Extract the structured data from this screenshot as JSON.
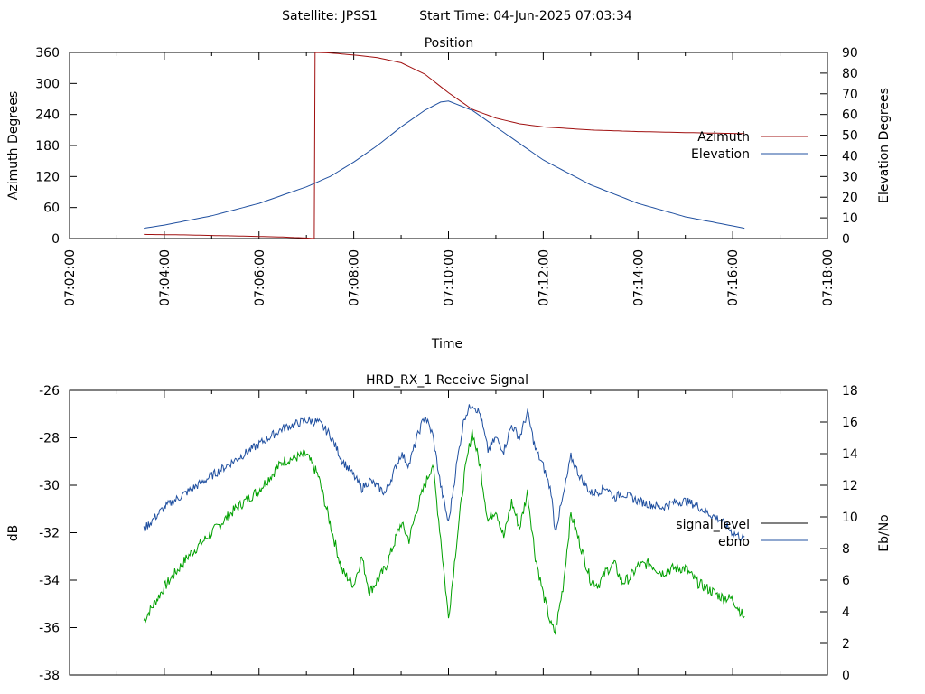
{
  "header": {
    "satellite_label": "Satellite: JPSS1",
    "start_label": "Start Time: 04-Jun-2025 07:03:34"
  },
  "colors": {
    "azimuth": "#a01010",
    "elevation": "#2050a0",
    "signal_level": "#00a000",
    "ebno": "#2050a0",
    "legend_signal_level": "#000000"
  },
  "chart_data": [
    {
      "type": "line",
      "title": "Position",
      "xlabel": "Time",
      "ylabel": "Azimuth Degrees",
      "y2label": "Elevation Degrees",
      "xlim": [
        "07:02:00",
        "07:18:00"
      ],
      "ylim": [
        0,
        360
      ],
      "y2lim": [
        0,
        90
      ],
      "x_ticks": [
        "07:02:00",
        "07:04:00",
        "07:06:00",
        "07:08:00",
        "07:10:00",
        "07:12:00",
        "07:14:00",
        "07:16:00",
        "07:18:00"
      ],
      "y_ticks": [
        "0",
        "60",
        "120",
        "180",
        "240",
        "300",
        "360"
      ],
      "y2_ticks": [
        "0",
        "10",
        "20",
        "30",
        "40",
        "50",
        "60",
        "70",
        "80",
        "90"
      ],
      "legend_position": "right",
      "grid": false,
      "series": [
        {
          "name": "Azimuth",
          "axis": "left",
          "points": [
            [
              "07:03:34",
              8
            ],
            [
              "07:04:30",
              7
            ],
            [
              "07:05:30",
              5
            ],
            [
              "07:06:30",
              3
            ],
            [
              "07:07:00",
              1
            ],
            [
              "07:07:10",
              0
            ],
            [
              "07:07:11",
              360
            ],
            [
              "07:07:30",
              359
            ],
            [
              "07:08:00",
              355
            ],
            [
              "07:08:30",
              350
            ],
            [
              "07:09:00",
              340
            ],
            [
              "07:09:30",
              318
            ],
            [
              "07:10:00",
              282
            ],
            [
              "07:10:30",
              250
            ],
            [
              "07:11:00",
              233
            ],
            [
              "07:11:30",
              222
            ],
            [
              "07:12:00",
              216
            ],
            [
              "07:13:00",
              210
            ],
            [
              "07:14:00",
              207
            ],
            [
              "07:15:00",
              205
            ],
            [
              "07:16:15",
              203
            ]
          ]
        },
        {
          "name": "Elevation",
          "axis": "right",
          "points": [
            [
              "07:03:34",
              5
            ],
            [
              "07:04:00",
              6.5
            ],
            [
              "07:05:00",
              11
            ],
            [
              "07:06:00",
              17
            ],
            [
              "07:07:00",
              25
            ],
            [
              "07:07:30",
              30
            ],
            [
              "07:08:00",
              37
            ],
            [
              "07:08:30",
              45
            ],
            [
              "07:09:00",
              54
            ],
            [
              "07:09:30",
              62
            ],
            [
              "07:09:50",
              66
            ],
            [
              "07:10:00",
              66.5
            ],
            [
              "07:10:30",
              62
            ],
            [
              "07:11:00",
              54
            ],
            [
              "07:11:30",
              46
            ],
            [
              "07:12:00",
              38
            ],
            [
              "07:13:00",
              26
            ],
            [
              "07:14:00",
              17
            ],
            [
              "07:15:00",
              10.5
            ],
            [
              "07:16:15",
              5
            ]
          ]
        }
      ]
    },
    {
      "type": "line",
      "title": "HRD_RX_1 Receive Signal",
      "xlabel": "",
      "ylabel": "dB",
      "y2label": "Eb/No",
      "xlim": [
        "07:02:00",
        "07:18:00"
      ],
      "ylim": [
        -38,
        -26
      ],
      "y2lim": [
        0,
        18
      ],
      "y_ticks": [
        "-26",
        "-28",
        "-30",
        "-32",
        "-34",
        "-36",
        "-38"
      ],
      "y2_ticks": [
        "0",
        "2",
        "4",
        "6",
        "8",
        "10",
        "12",
        "14",
        "16",
        "18"
      ],
      "legend_position": "right",
      "grid": false,
      "series": [
        {
          "name": "signal_level",
          "axis": "left",
          "points": [
            [
              "07:03:34",
              -35.7
            ],
            [
              "07:04:00",
              -34.3
            ],
            [
              "07:04:30",
              -33.0
            ],
            [
              "07:05:00",
              -32.0
            ],
            [
              "07:05:30",
              -31.0
            ],
            [
              "07:06:00",
              -30.2
            ],
            [
              "07:06:30",
              -29.0
            ],
            [
              "07:07:00",
              -28.7
            ],
            [
              "07:07:15",
              -29.6
            ],
            [
              "07:07:30",
              -31.6
            ],
            [
              "07:07:45",
              -33.6
            ],
            [
              "07:08:00",
              -34.2
            ],
            [
              "07:08:10",
              -33.0
            ],
            [
              "07:08:20",
              -34.5
            ],
            [
              "07:08:40",
              -33.5
            ],
            [
              "07:09:00",
              -31.6
            ],
            [
              "07:09:10",
              -32.3
            ],
            [
              "07:09:20",
              -31.0
            ],
            [
              "07:09:30",
              -30.0
            ],
            [
              "07:09:40",
              -29.1
            ],
            [
              "07:09:50",
              -32.2
            ],
            [
              "07:10:00",
              -35.6
            ],
            [
              "07:10:10",
              -32.5
            ],
            [
              "07:10:20",
              -29.6
            ],
            [
              "07:10:30",
              -27.7
            ],
            [
              "07:10:40",
              -29.2
            ],
            [
              "07:10:50",
              -31.5
            ],
            [
              "07:11:00",
              -31.0
            ],
            [
              "07:11:10",
              -32.2
            ],
            [
              "07:11:20",
              -30.7
            ],
            [
              "07:11:30",
              -31.8
            ],
            [
              "07:11:40",
              -30.3
            ],
            [
              "07:11:50",
              -33.0
            ],
            [
              "07:12:00",
              -34.6
            ],
            [
              "07:12:10",
              -35.9
            ],
            [
              "07:12:15",
              -36.2
            ],
            [
              "07:12:25",
              -34.3
            ],
            [
              "07:12:35",
              -31.2
            ],
            [
              "07:12:45",
              -32.3
            ],
            [
              "07:13:00",
              -34.0
            ],
            [
              "07:13:10",
              -34.2
            ],
            [
              "07:13:20",
              -33.6
            ],
            [
              "07:13:30",
              -33.3
            ],
            [
              "07:13:40",
              -34.1
            ],
            [
              "07:13:50",
              -33.9
            ],
            [
              "07:14:00",
              -33.4
            ],
            [
              "07:14:15",
              -33.3
            ],
            [
              "07:14:30",
              -33.7
            ],
            [
              "07:14:45",
              -33.5
            ],
            [
              "07:15:00",
              -33.5
            ],
            [
              "07:15:15",
              -34.1
            ],
            [
              "07:15:30",
              -34.4
            ],
            [
              "07:15:45",
              -34.7
            ],
            [
              "07:16:00",
              -34.8
            ],
            [
              "07:16:15",
              -35.6
            ]
          ]
        },
        {
          "name": "ebno",
          "axis": "right",
          "points": [
            [
              "07:03:34",
              9.2
            ],
            [
              "07:04:00",
              10.6
            ],
            [
              "07:04:30",
              11.6
            ],
            [
              "07:05:00",
              12.6
            ],
            [
              "07:05:30",
              13.6
            ],
            [
              "07:06:00",
              14.6
            ],
            [
              "07:06:30",
              15.6
            ],
            [
              "07:07:00",
              16.1
            ],
            [
              "07:07:15",
              16.0
            ],
            [
              "07:07:30",
              15.2
            ],
            [
              "07:07:45",
              13.6
            ],
            [
              "07:08:00",
              12.6
            ],
            [
              "07:08:10",
              11.8
            ],
            [
              "07:08:20",
              12.3
            ],
            [
              "07:08:40",
              11.5
            ],
            [
              "07:09:00",
              14.0
            ],
            [
              "07:09:10",
              13.3
            ],
            [
              "07:09:20",
              15.0
            ],
            [
              "07:09:30",
              16.4
            ],
            [
              "07:09:40",
              15.2
            ],
            [
              "07:09:50",
              12.0
            ],
            [
              "07:10:00",
              9.6
            ],
            [
              "07:10:10",
              13.2
            ],
            [
              "07:10:20",
              16.3
            ],
            [
              "07:10:30",
              17.2
            ],
            [
              "07:10:40",
              16.5
            ],
            [
              "07:10:50",
              14.2
            ],
            [
              "07:11:00",
              15.0
            ],
            [
              "07:11:10",
              14.2
            ],
            [
              "07:11:20",
              15.8
            ],
            [
              "07:11:30",
              15.0
            ],
            [
              "07:11:40",
              16.6
            ],
            [
              "07:11:50",
              14.3
            ],
            [
              "07:12:00",
              13.2
            ],
            [
              "07:12:10",
              11.6
            ],
            [
              "07:12:15",
              9.1
            ],
            [
              "07:12:25",
              11.2
            ],
            [
              "07:12:35",
              13.8
            ],
            [
              "07:12:45",
              12.7
            ],
            [
              "07:13:00",
              11.5
            ],
            [
              "07:13:10",
              11.6
            ],
            [
              "07:13:20",
              11.9
            ],
            [
              "07:13:30",
              11.2
            ],
            [
              "07:13:40",
              11.5
            ],
            [
              "07:14:00",
              11.0
            ],
            [
              "07:14:15",
              10.8
            ],
            [
              "07:14:30",
              10.6
            ],
            [
              "07:14:45",
              10.9
            ],
            [
              "07:15:00",
              11.0
            ],
            [
              "07:15:15",
              10.7
            ],
            [
              "07:15:30",
              10.2
            ],
            [
              "07:15:45",
              9.8
            ],
            [
              "07:16:00",
              9.0
            ],
            [
              "07:16:15",
              8.6
            ]
          ]
        }
      ]
    }
  ]
}
